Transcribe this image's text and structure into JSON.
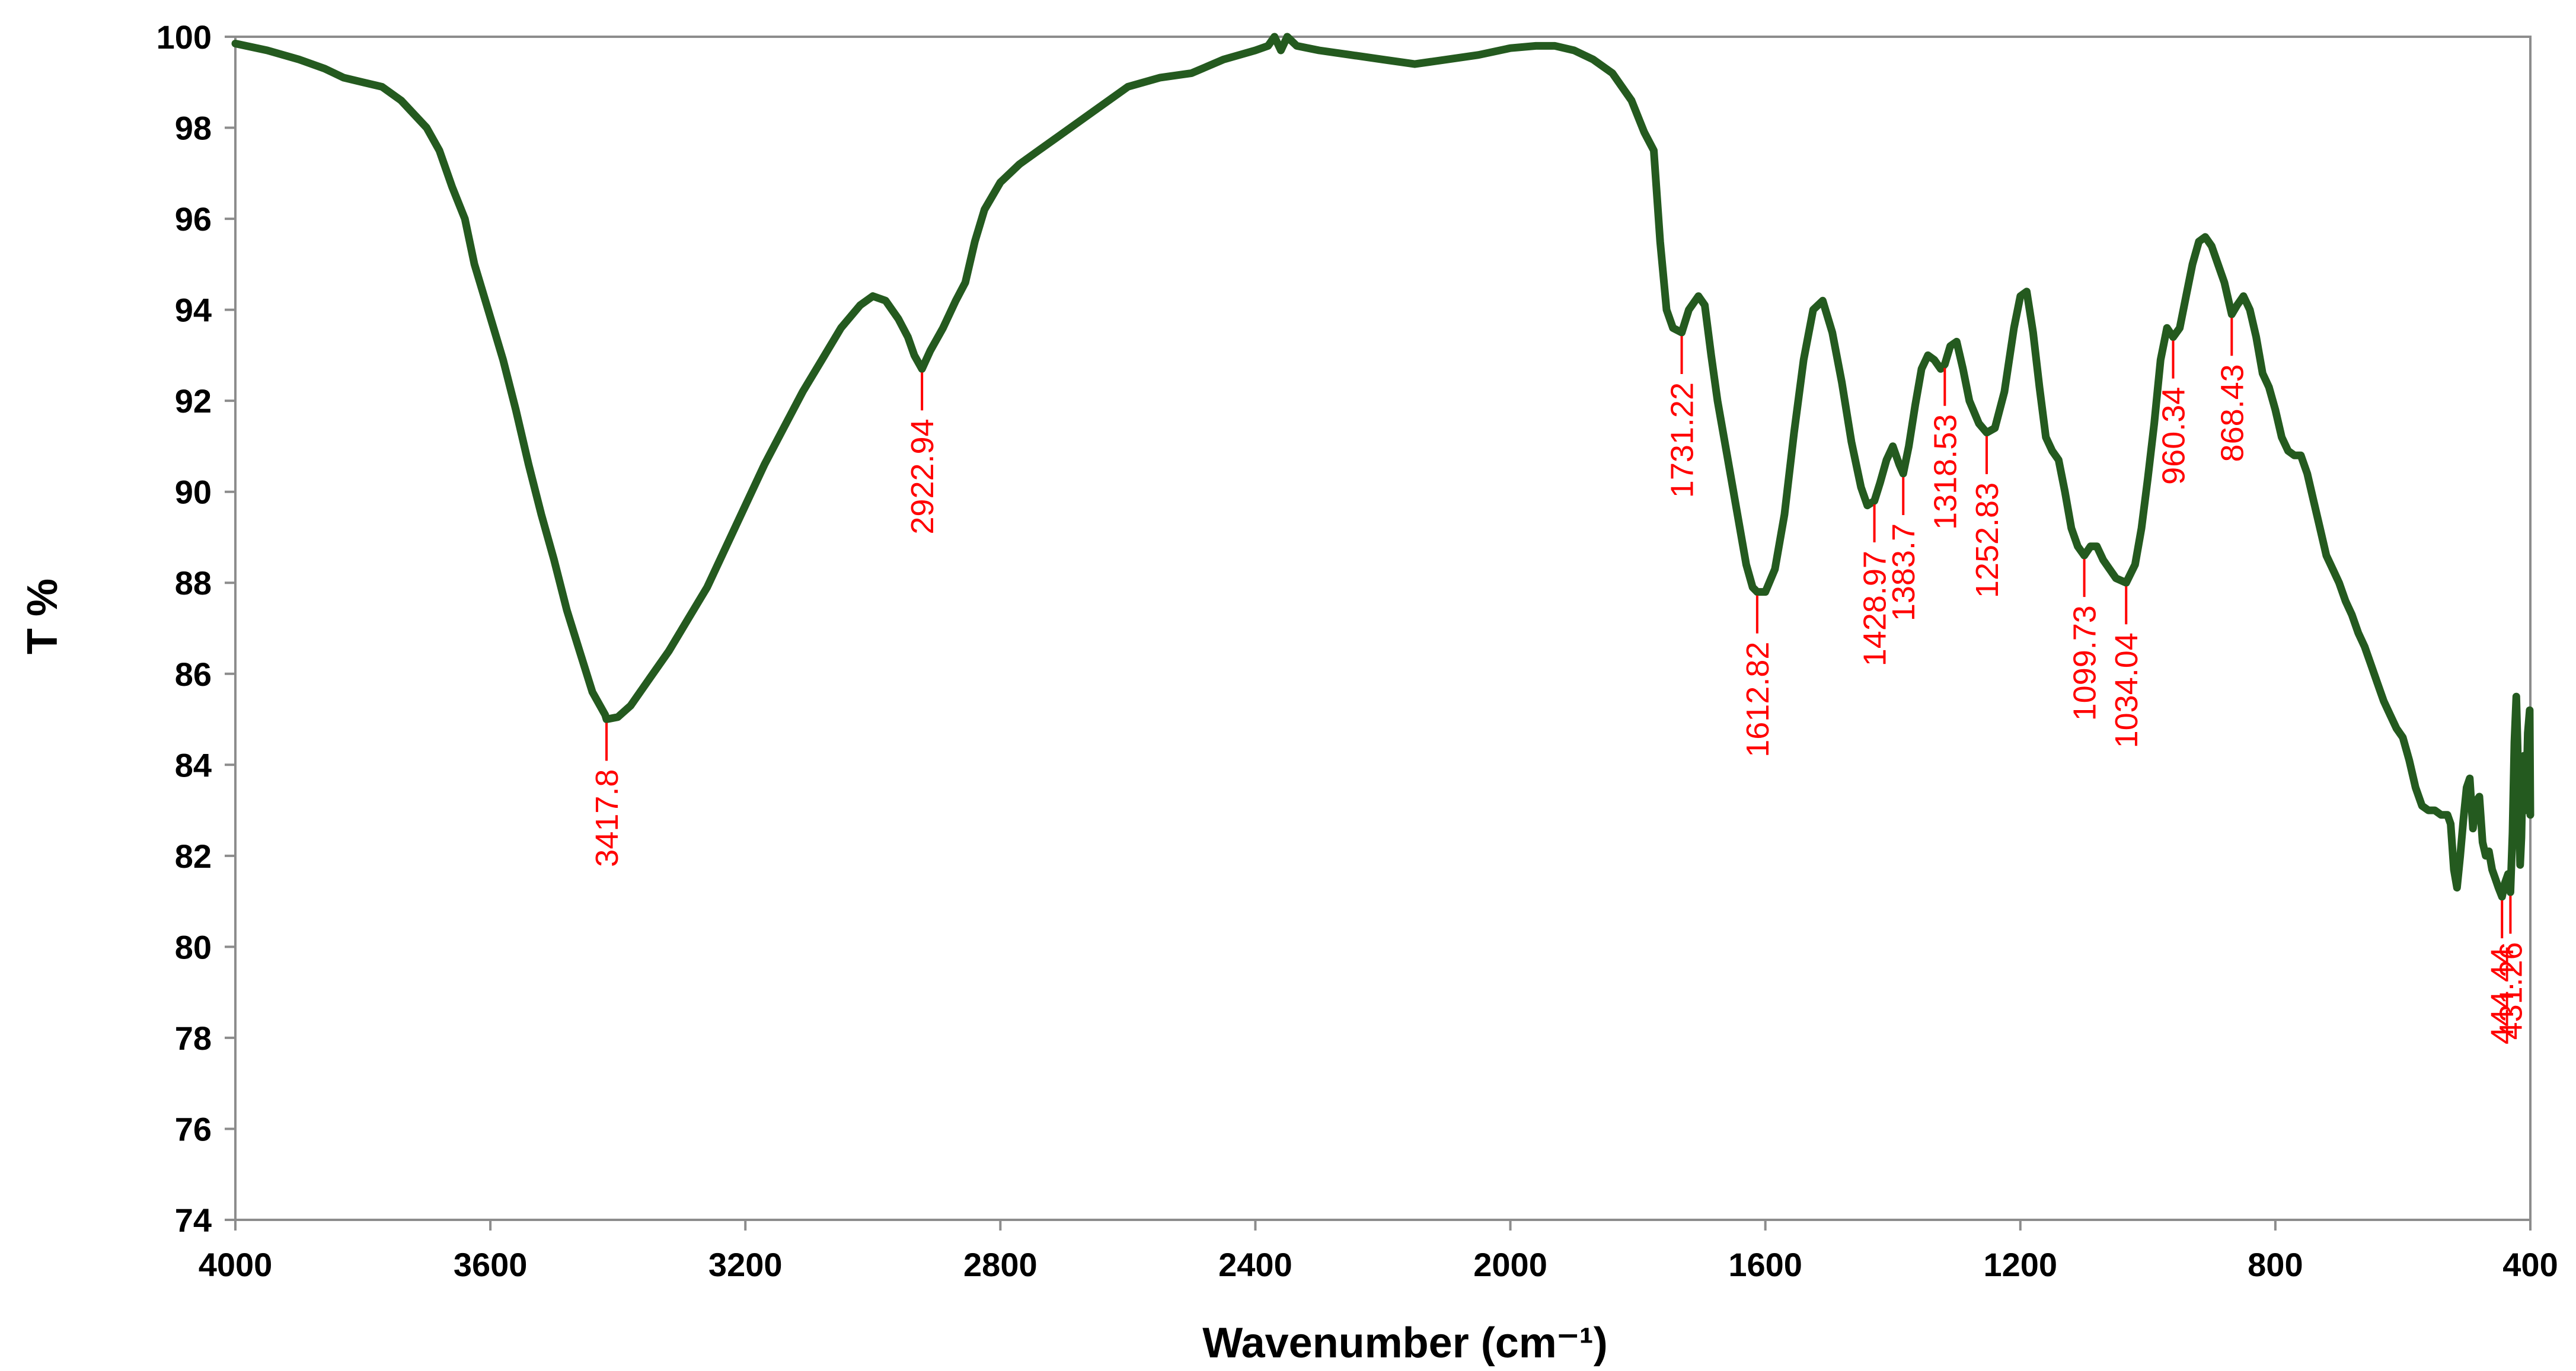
{
  "chart_data": {
    "type": "line",
    "title": "",
    "xlabel": "Wavenumber (cm⁻¹)",
    "ylabel": "T %",
    "xlim": [
      4000,
      400
    ],
    "ylim": [
      74,
      100
    ],
    "x_reversed": true,
    "grid": false,
    "legend": "none",
    "x_ticks": [
      4000,
      3600,
      3200,
      2800,
      2400,
      2000,
      1600,
      1200,
      800,
      400
    ],
    "y_ticks": [
      74,
      76,
      78,
      80,
      82,
      84,
      86,
      88,
      90,
      92,
      94,
      96,
      98,
      100
    ],
    "x_tick_labels": [
      "4000",
      "3600",
      "3200",
      "2800",
      "2400",
      "2000",
      "1600",
      "1200",
      "800",
      "400"
    ],
    "y_tick_labels": [
      "74",
      "76",
      "78",
      "80",
      "82",
      "84",
      "86",
      "88",
      "90",
      "92",
      "94",
      "96",
      "98",
      "100"
    ],
    "series": [
      {
        "color": "#245a1f",
        "points": [
          [
            4000,
            99.85
          ],
          [
            3950,
            99.7
          ],
          [
            3900,
            99.5
          ],
          [
            3860,
            99.3
          ],
          [
            3830,
            99.1
          ],
          [
            3800,
            99.0
          ],
          [
            3770,
            98.9
          ],
          [
            3740,
            98.6
          ],
          [
            3720,
            98.3
          ],
          [
            3700,
            98.0
          ],
          [
            3680,
            97.5
          ],
          [
            3660,
            96.7
          ],
          [
            3640,
            96.0
          ],
          [
            3625,
            95.0
          ],
          [
            3610,
            94.3
          ],
          [
            3595,
            93.6
          ],
          [
            3580,
            92.9
          ],
          [
            3560,
            91.8
          ],
          [
            3540,
            90.6
          ],
          [
            3520,
            89.5
          ],
          [
            3500,
            88.5
          ],
          [
            3480,
            87.4
          ],
          [
            3460,
            86.5
          ],
          [
            3440,
            85.6
          ],
          [
            3420,
            85.1
          ],
          [
            3417.8,
            85.0
          ],
          [
            3400,
            85.05
          ],
          [
            3380,
            85.3
          ],
          [
            3350,
            85.9
          ],
          [
            3320,
            86.5
          ],
          [
            3290,
            87.2
          ],
          [
            3260,
            87.9
          ],
          [
            3230,
            88.8
          ],
          [
            3200,
            89.7
          ],
          [
            3170,
            90.6
          ],
          [
            3140,
            91.4
          ],
          [
            3110,
            92.2
          ],
          [
            3080,
            92.9
          ],
          [
            3050,
            93.6
          ],
          [
            3020,
            94.1
          ],
          [
            3000,
            94.3
          ],
          [
            2980,
            94.2
          ],
          [
            2960,
            93.8
          ],
          [
            2945,
            93.4
          ],
          [
            2935,
            93.0
          ],
          [
            2922.94,
            92.7
          ],
          [
            2910,
            93.1
          ],
          [
            2890,
            93.6
          ],
          [
            2870,
            94.2
          ],
          [
            2855,
            94.6
          ],
          [
            2840,
            95.5
          ],
          [
            2825,
            96.2
          ],
          [
            2800,
            96.8
          ],
          [
            2770,
            97.2
          ],
          [
            2740,
            97.5
          ],
          [
            2700,
            97.9
          ],
          [
            2650,
            98.4
          ],
          [
            2600,
            98.9
          ],
          [
            2550,
            99.1
          ],
          [
            2500,
            99.2
          ],
          [
            2450,
            99.5
          ],
          [
            2400,
            99.7
          ],
          [
            2380,
            99.8
          ],
          [
            2370,
            100.0
          ],
          [
            2360,
            99.7
          ],
          [
            2350,
            100.0
          ],
          [
            2335,
            99.8
          ],
          [
            2300,
            99.7
          ],
          [
            2250,
            99.6
          ],
          [
            2200,
            99.5
          ],
          [
            2150,
            99.4
          ],
          [
            2100,
            99.5
          ],
          [
            2050,
            99.6
          ],
          [
            2000,
            99.75
          ],
          [
            1960,
            99.8
          ],
          [
            1930,
            99.8
          ],
          [
            1900,
            99.7
          ],
          [
            1870,
            99.5
          ],
          [
            1840,
            99.2
          ],
          [
            1810,
            98.6
          ],
          [
            1790,
            97.9
          ],
          [
            1775,
            97.5
          ],
          [
            1765,
            95.5
          ],
          [
            1755,
            94.0
          ],
          [
            1745,
            93.6
          ],
          [
            1731.22,
            93.5
          ],
          [
            1720,
            94.0
          ],
          [
            1705,
            94.3
          ],
          [
            1695,
            94.1
          ],
          [
            1685,
            93.0
          ],
          [
            1675,
            92.0
          ],
          [
            1660,
            90.8
          ],
          [
            1645,
            89.6
          ],
          [
            1630,
            88.4
          ],
          [
            1620,
            87.9
          ],
          [
            1612.82,
            87.8
          ],
          [
            1600,
            87.8
          ],
          [
            1585,
            88.3
          ],
          [
            1570,
            89.5
          ],
          [
            1555,
            91.3
          ],
          [
            1540,
            92.9
          ],
          [
            1525,
            94.0
          ],
          [
            1510,
            94.2
          ],
          [
            1495,
            93.5
          ],
          [
            1480,
            92.4
          ],
          [
            1465,
            91.1
          ],
          [
            1450,
            90.1
          ],
          [
            1440,
            89.7
          ],
          [
            1428.97,
            89.8
          ],
          [
            1420,
            90.2
          ],
          [
            1410,
            90.7
          ],
          [
            1400,
            91.0
          ],
          [
            1390,
            90.6
          ],
          [
            1383.7,
            90.4
          ],
          [
            1375,
            91.0
          ],
          [
            1365,
            91.9
          ],
          [
            1355,
            92.7
          ],
          [
            1345,
            93.0
          ],
          [
            1335,
            92.9
          ],
          [
            1325,
            92.7
          ],
          [
            1318.53,
            92.8
          ],
          [
            1310,
            93.2
          ],
          [
            1300,
            93.3
          ],
          [
            1290,
            92.7
          ],
          [
            1280,
            92.0
          ],
          [
            1265,
            91.5
          ],
          [
            1252.83,
            91.3
          ],
          [
            1240,
            91.4
          ],
          [
            1225,
            92.2
          ],
          [
            1210,
            93.6
          ],
          [
            1200,
            94.3
          ],
          [
            1190,
            94.4
          ],
          [
            1180,
            93.5
          ],
          [
            1170,
            92.3
          ],
          [
            1160,
            91.2
          ],
          [
            1150,
            90.9
          ],
          [
            1140,
            90.7
          ],
          [
            1130,
            90.0
          ],
          [
            1120,
            89.2
          ],
          [
            1110,
            88.8
          ],
          [
            1099.73,
            88.6
          ],
          [
            1090,
            88.8
          ],
          [
            1080,
            88.8
          ],
          [
            1070,
            88.5
          ],
          [
            1060,
            88.3
          ],
          [
            1050,
            88.1
          ],
          [
            1034.04,
            88.0
          ],
          [
            1020,
            88.4
          ],
          [
            1010,
            89.2
          ],
          [
            1000,
            90.3
          ],
          [
            990,
            91.5
          ],
          [
            980,
            92.9
          ],
          [
            970,
            93.6
          ],
          [
            960.34,
            93.4
          ],
          [
            950,
            93.6
          ],
          [
            940,
            94.3
          ],
          [
            930,
            95.0
          ],
          [
            920,
            95.5
          ],
          [
            910,
            95.6
          ],
          [
            900,
            95.4
          ],
          [
            890,
            95.0
          ],
          [
            880,
            94.6
          ],
          [
            868.43,
            93.9
          ],
          [
            860,
            94.1
          ],
          [
            850,
            94.3
          ],
          [
            840,
            94.0
          ],
          [
            830,
            93.4
          ],
          [
            820,
            92.6
          ],
          [
            810,
            92.3
          ],
          [
            800,
            91.8
          ],
          [
            790,
            91.2
          ],
          [
            780,
            90.9
          ],
          [
            770,
            90.8
          ],
          [
            760,
            90.8
          ],
          [
            750,
            90.4
          ],
          [
            740,
            89.8
          ],
          [
            730,
            89.2
          ],
          [
            720,
            88.6
          ],
          [
            710,
            88.3
          ],
          [
            700,
            88.0
          ],
          [
            690,
            87.6
          ],
          [
            680,
            87.3
          ],
          [
            670,
            86.9
          ],
          [
            660,
            86.6
          ],
          [
            650,
            86.2
          ],
          [
            640,
            85.8
          ],
          [
            630,
            85.4
          ],
          [
            620,
            85.1
          ],
          [
            610,
            84.8
          ],
          [
            600,
            84.6
          ],
          [
            590,
            84.1
          ],
          [
            580,
            83.5
          ],
          [
            570,
            83.1
          ],
          [
            560,
            83.0
          ],
          [
            550,
            83.0
          ],
          [
            540,
            82.9
          ],
          [
            530,
            82.9
          ],
          [
            525,
            82.7
          ],
          [
            520,
            81.7
          ],
          [
            515,
            81.3
          ],
          [
            510,
            82.0
          ],
          [
            505,
            82.8
          ],
          [
            500,
            83.5
          ],
          [
            495,
            83.7
          ],
          [
            490,
            82.6
          ],
          [
            485,
            83.2
          ],
          [
            480,
            83.3
          ],
          [
            475,
            82.3
          ],
          [
            470,
            82.0
          ],
          [
            465,
            82.1
          ],
          [
            460,
            81.7
          ],
          [
            455,
            81.5
          ],
          [
            450,
            81.3
          ],
          [
            444.44,
            81.1
          ],
          [
            440,
            81.4
          ],
          [
            435,
            81.6
          ],
          [
            431.26,
            81.2
          ],
          [
            428,
            82.5
          ],
          [
            425,
            84.5
          ],
          [
            422,
            85.5
          ],
          [
            420,
            84.4
          ],
          [
            418,
            82.8
          ],
          [
            416,
            81.8
          ],
          [
            414,
            82.4
          ],
          [
            412,
            83.8
          ],
          [
            410,
            84.2
          ],
          [
            407,
            83.0
          ],
          [
            404,
            84.7
          ],
          [
            401,
            85.2
          ],
          [
            400,
            82.9
          ]
        ]
      }
    ],
    "annotations": [
      {
        "x": 3417.8,
        "y": 85.0,
        "label": "3417.8",
        "side": "below"
      },
      {
        "x": 2922.94,
        "y": 92.7,
        "label": "2922.94",
        "side": "below"
      },
      {
        "x": 1731.22,
        "y": 93.5,
        "label": "1731.22",
        "side": "below"
      },
      {
        "x": 1612.82,
        "y": 87.8,
        "label": "1612.82",
        "side": "below"
      },
      {
        "x": 1428.97,
        "y": 89.8,
        "label": "1428.97",
        "side": "below"
      },
      {
        "x": 1383.7,
        "y": 90.4,
        "label": "1383.7",
        "side": "below"
      },
      {
        "x": 1318.53,
        "y": 92.8,
        "label": "1318.53",
        "side": "below"
      },
      {
        "x": 1252.83,
        "y": 91.3,
        "label": "1252.83",
        "side": "below"
      },
      {
        "x": 1099.73,
        "y": 88.6,
        "label": "1099.73",
        "side": "below"
      },
      {
        "x": 1034.04,
        "y": 88.0,
        "label": "1034.04",
        "side": "below"
      },
      {
        "x": 960.34,
        "y": 93.4,
        "label": "960.34",
        "side": "below"
      },
      {
        "x": 868.43,
        "y": 93.9,
        "label": "868.43",
        "side": "below"
      },
      {
        "x": 444.44,
        "y": 81.1,
        "label": "444.44",
        "side": "below"
      },
      {
        "x": 431.26,
        "y": 81.2,
        "label": "431.26",
        "side": "below"
      }
    ]
  }
}
